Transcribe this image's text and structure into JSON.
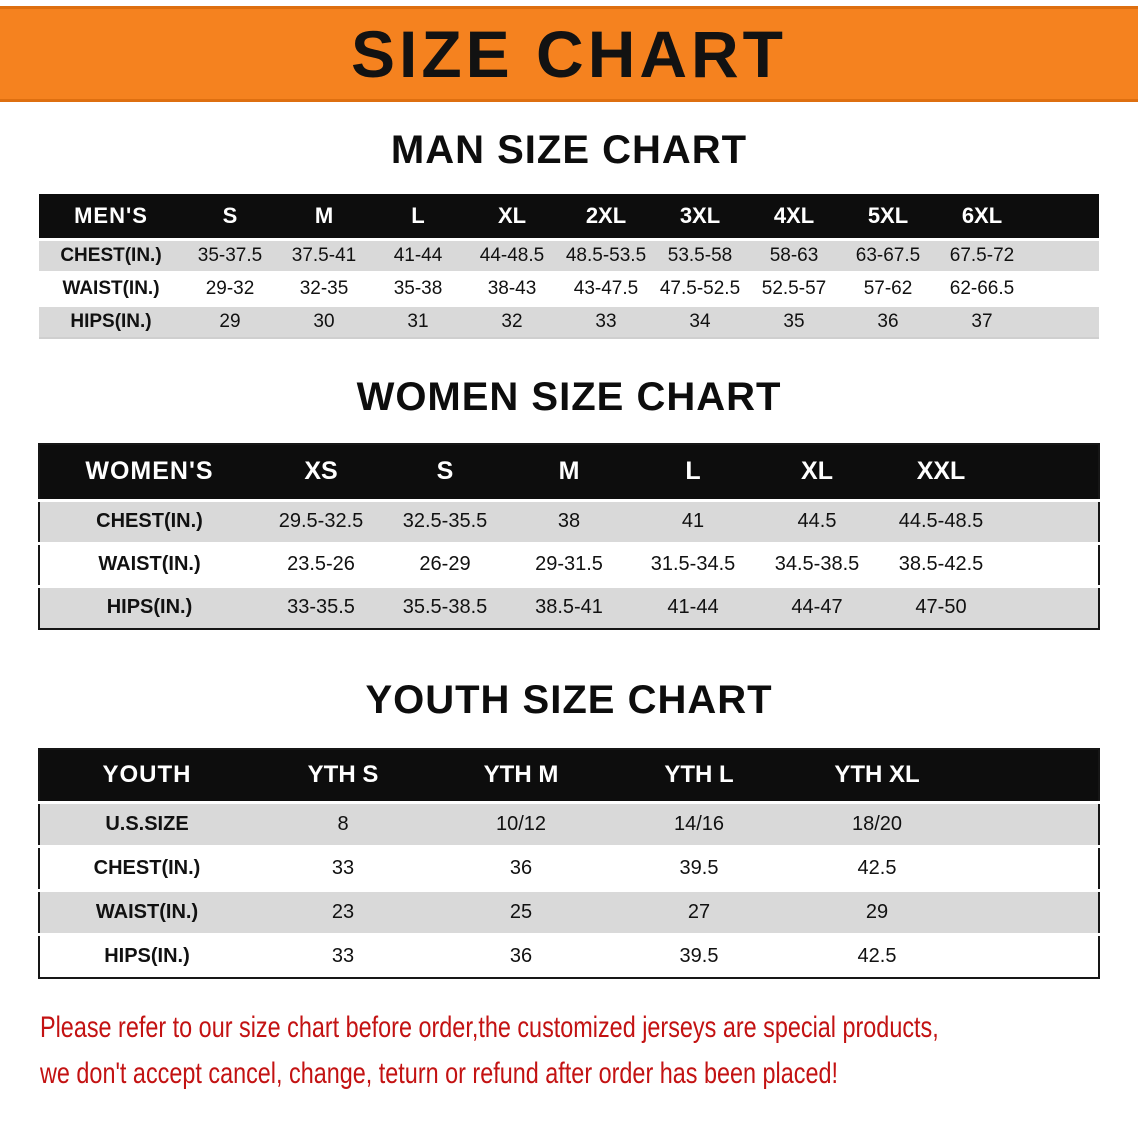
{
  "banner": {
    "title": "SIZE CHART"
  },
  "colors": {
    "banner_orange": "#F5821F",
    "table_header_black": "#0D0D0D",
    "row_gray": "#D9D9D9",
    "note_red": "#C31212"
  },
  "men": {
    "title": "MAN SIZE CHART",
    "header": [
      "MEN'S",
      "S",
      "M",
      "L",
      "XL",
      "2XL",
      "3XL",
      "4XL",
      "5XL",
      "6XL"
    ],
    "rows": [
      {
        "label": "CHEST(IN.)",
        "values": [
          "35-37.5",
          "37.5-41",
          "41-44",
          "44-48.5",
          "48.5-53.5",
          "53.5-58",
          "58-63",
          "63-67.5",
          "67.5-72"
        ]
      },
      {
        "label": "WAIST(IN.)",
        "values": [
          "29-32",
          "32-35",
          "35-38",
          "38-43",
          "43-47.5",
          "47.5-52.5",
          "52.5-57",
          "57-62",
          "62-66.5"
        ]
      },
      {
        "label": "HIPS(IN.)",
        "values": [
          "29",
          "30",
          "31",
          "32",
          "33",
          "34",
          "35",
          "36",
          "37"
        ]
      }
    ]
  },
  "women": {
    "title": "WOMEN SIZE CHART",
    "header": [
      "WOMEN'S",
      "XS",
      "S",
      "M",
      "L",
      "XL",
      "XXL"
    ],
    "rows": [
      {
        "label": "CHEST(IN.)",
        "values": [
          "29.5-32.5",
          "32.5-35.5",
          "38",
          "41",
          "44.5",
          "44.5-48.5"
        ]
      },
      {
        "label": "WAIST(IN.)",
        "values": [
          "23.5-26",
          "26-29",
          "29-31.5",
          "31.5-34.5",
          "34.5-38.5",
          "38.5-42.5"
        ]
      },
      {
        "label": "HIPS(IN.)",
        "values": [
          "33-35.5",
          "35.5-38.5",
          "38.5-41",
          "41-44",
          "44-47",
          "47-50"
        ]
      }
    ]
  },
  "youth": {
    "title": "YOUTH SIZE CHART",
    "header": [
      "YOUTH",
      "YTH S",
      "YTH M",
      "YTH L",
      "YTH XL"
    ],
    "rows": [
      {
        "label": "U.S.SIZE",
        "values": [
          "8",
          "10/12",
          "14/16",
          "18/20"
        ]
      },
      {
        "label": "CHEST(IN.)",
        "values": [
          "33",
          "36",
          "39.5",
          "42.5"
        ]
      },
      {
        "label": "WAIST(IN.)",
        "values": [
          "23",
          "25",
          "27",
          "29"
        ]
      },
      {
        "label": "HIPS(IN.)",
        "values": [
          "33",
          "36",
          "39.5",
          "42.5"
        ]
      }
    ]
  },
  "footer": {
    "line1": "Please refer to our size chart before order,the customized jerseys are special products,",
    "line2": "we don't accept cancel, change, teturn or refund after order has been placed!"
  }
}
